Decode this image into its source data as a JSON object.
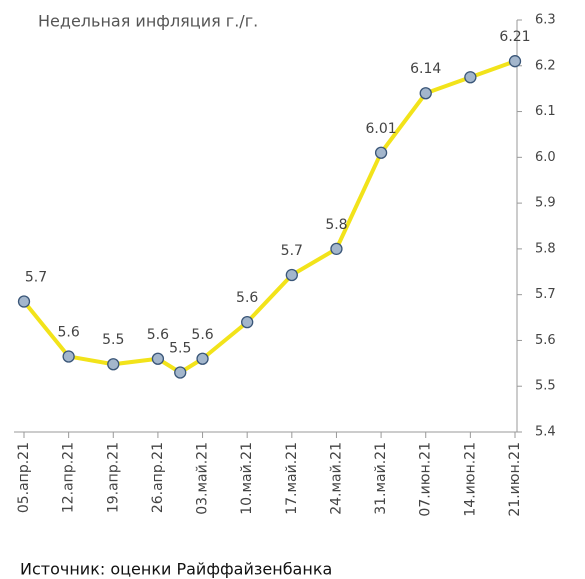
{
  "chart_data": {
    "type": "line",
    "title": "Недельная инфляция г./г.",
    "source": "Источник: оценки Райффайзенбанка",
    "categories": [
      "05.апр.21",
      "12.апр.21",
      "19.апр.21",
      "26.апр.21",
      null,
      "03.май.21",
      "10.май.21",
      "17.май.21",
      "24.май.21",
      "31.май.21",
      "07.июн.21",
      "14.июн.21",
      "21.июн.21"
    ],
    "series": [
      {
        "name": "Недельная инфляция г./г.",
        "color": "#f2e31a",
        "marker_color": "#a3b6cc",
        "values": [
          5.685,
          5.565,
          5.548,
          5.56,
          5.53,
          5.56,
          5.64,
          5.743,
          5.8,
          6.01,
          6.14,
          6.175,
          6.21
        ],
        "value_labels": [
          "5.7",
          "5.6",
          "5.5",
          "5.6",
          "5.5",
          "5.6",
          "5.6",
          "5.7",
          "5.8",
          "6.01",
          "6.14",
          null,
          "6.21"
        ]
      }
    ],
    "ylim": [
      5.4,
      6.3
    ],
    "yticks": [
      5.4,
      5.5,
      5.6,
      5.7,
      5.8,
      5.9,
      {
        "value": 6.0,
        "label": "6.0"
      },
      6.1,
      6.2,
      6.3
    ],
    "y_axis_side": "right",
    "grid": false
  }
}
